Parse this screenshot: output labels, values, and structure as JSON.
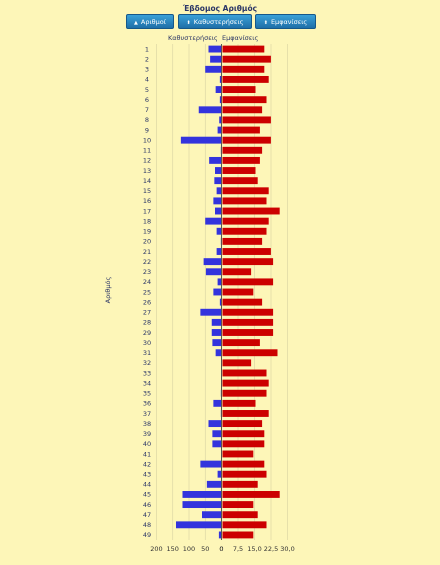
{
  "title": "Έβδομος Αριθμός",
  "buttons": {
    "numbers": "Αριθμοί",
    "delays": "Καθυστερήσεις",
    "appearances": "Εμφανίσεις"
  },
  "chart_data": {
    "type": "bar",
    "orientation": "horizontal",
    "ylabel": "Αριθμός",
    "categories": [
      "1",
      "2",
      "3",
      "4",
      "5",
      "6",
      "7",
      "8",
      "9",
      "10",
      "11",
      "12",
      "13",
      "14",
      "15",
      "16",
      "17",
      "18",
      "19",
      "20",
      "21",
      "22",
      "23",
      "24",
      "25",
      "26",
      "27",
      "28",
      "29",
      "30",
      "31",
      "32",
      "33",
      "34",
      "35",
      "36",
      "37",
      "38",
      "39",
      "40",
      "41",
      "42",
      "43",
      "44",
      "45",
      "46",
      "47",
      "48",
      "49"
    ],
    "series": [
      {
        "name": "Καθυστερήσεις",
        "color": "#3333dd",
        "xlim": [
          0,
          200
        ],
        "ticks": [
          "200",
          "150",
          "100",
          "50",
          "0"
        ],
        "values": [
          40,
          35,
          50,
          5,
          18,
          5,
          70,
          7,
          12,
          125,
          2,
          38,
          20,
          22,
          15,
          25,
          20,
          50,
          15,
          2,
          15,
          55,
          48,
          12,
          25,
          5,
          65,
          30,
          30,
          28,
          18,
          0,
          0,
          0,
          2,
          25,
          2,
          40,
          28,
          28,
          0,
          65,
          12,
          45,
          120,
          120,
          60,
          140,
          8
        ]
      },
      {
        "name": "Εμφανίσεις",
        "color": "#cc0000",
        "xlim": [
          0,
          30
        ],
        "ticks": [
          "0",
          "7,5",
          "15,0",
          "22,5",
          "30,0"
        ],
        "values": [
          19,
          22,
          19,
          21,
          15,
          20,
          18,
          22,
          17,
          22,
          18,
          17,
          15,
          16,
          21,
          20,
          26,
          21,
          20,
          18,
          22,
          23,
          13,
          23,
          14,
          18,
          23,
          23,
          23,
          17,
          25,
          13,
          20,
          21,
          20,
          15,
          21,
          18,
          19,
          19,
          14,
          19,
          20,
          16,
          26,
          14,
          16,
          20,
          14
        ]
      }
    ],
    "grid": true,
    "legend": "none"
  }
}
